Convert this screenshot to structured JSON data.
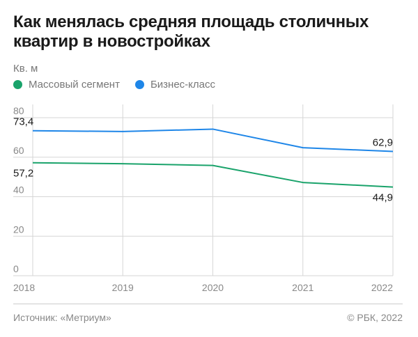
{
  "title": "Как менялась средняя площадь столичных квартир в новостройках",
  "unit_label": "Кв. м",
  "source": "Источник: «Метриум»",
  "copyright": "© РБК, 2022",
  "chart_data": {
    "type": "line",
    "title": "Как менялась средняя площадь столичных квартир в новостройках",
    "ylabel": "Кв. м",
    "x": [
      2018,
      2019,
      2020,
      2021,
      2022
    ],
    "ylim": [
      0,
      80
    ],
    "yticks": [
      0,
      20,
      40,
      60,
      80
    ],
    "grid": true,
    "legend_position": "top-left",
    "series": [
      {
        "name": "Массовый сегмент",
        "color": "#1aa36b",
        "values": [
          57.2,
          56.7,
          55.8,
          47.2,
          44.9
        ]
      },
      {
        "name": "Бизнес-класс",
        "color": "#1e86e8",
        "values": [
          73.4,
          73.0,
          74.2,
          64.8,
          62.9
        ]
      }
    ],
    "annotations": [
      {
        "series": 1,
        "index": 0,
        "text": "73,4",
        "position": "above"
      },
      {
        "series": 0,
        "index": 0,
        "text": "57,2",
        "position": "below"
      },
      {
        "series": 1,
        "index": 4,
        "text": "62,9",
        "position": "above"
      },
      {
        "series": 0,
        "index": 4,
        "text": "44,9",
        "position": "below"
      }
    ]
  }
}
